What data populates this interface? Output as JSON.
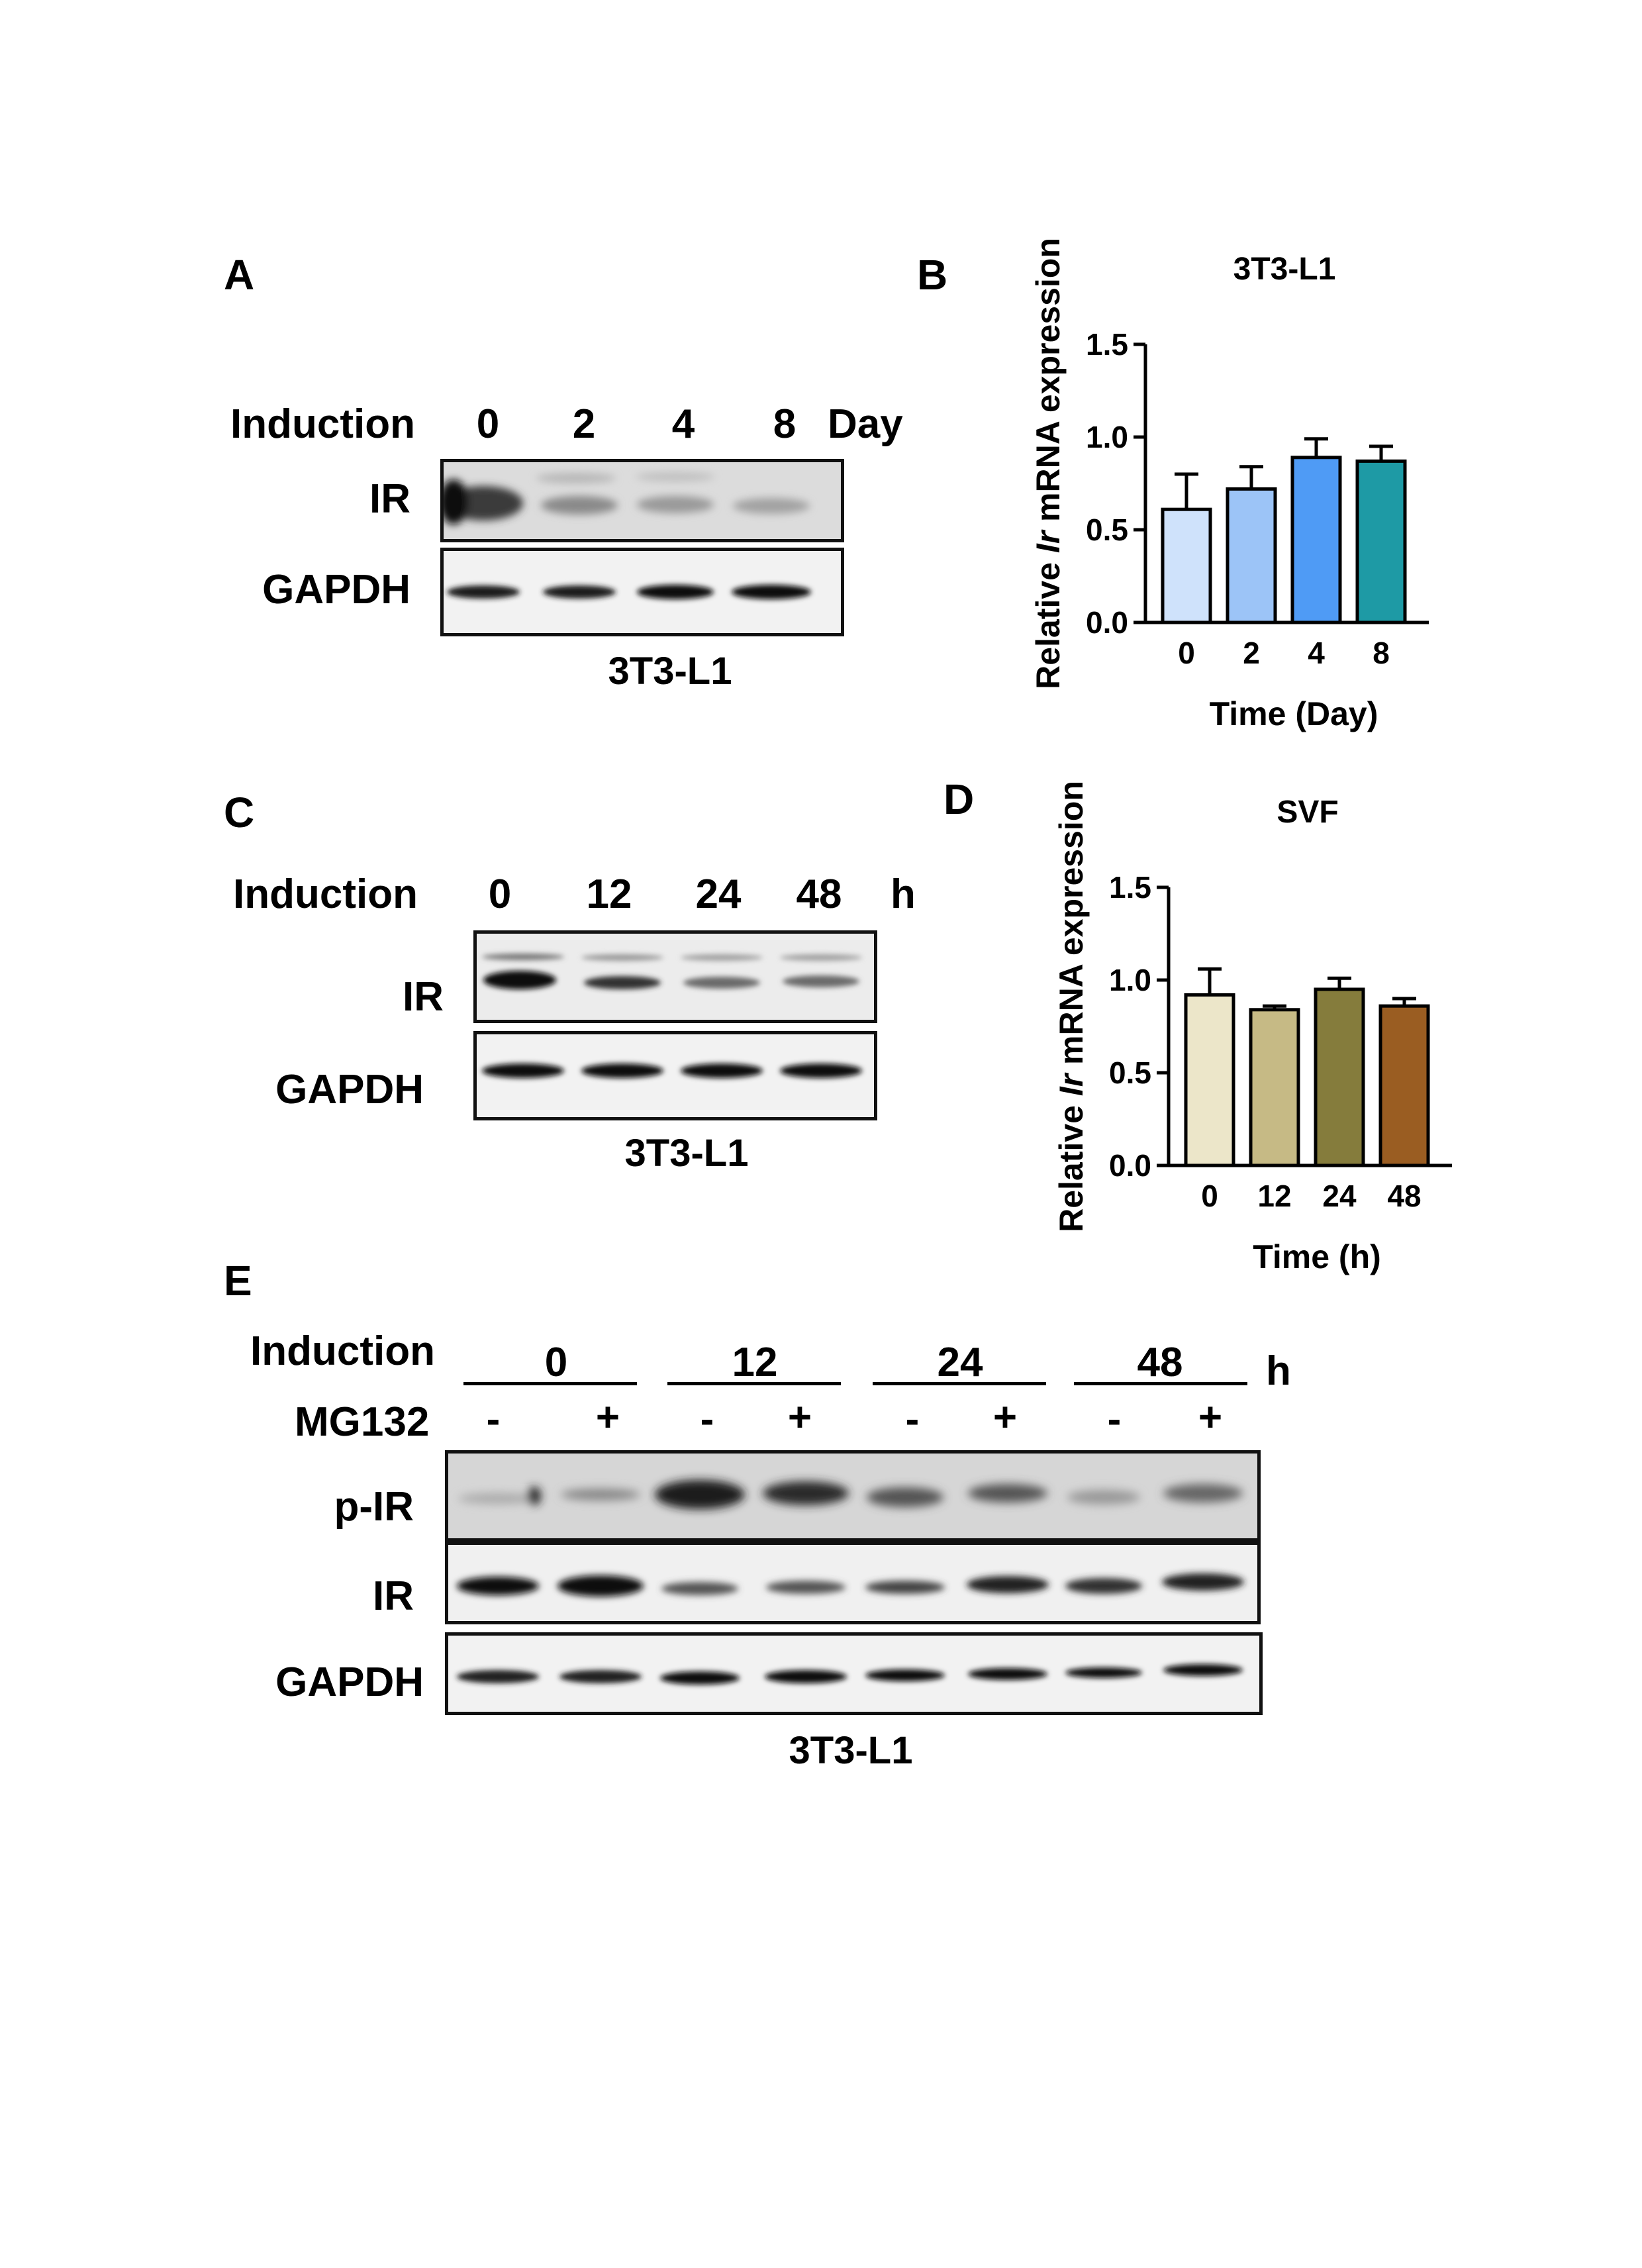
{
  "panels": {
    "A": {
      "label": "A",
      "induction_label": "Induction",
      "lanes": [
        "0",
        "2",
        "4",
        "8"
      ],
      "unit": "Day",
      "rows": [
        "IR",
        "GAPDH"
      ],
      "cell_line": "3T3-L1"
    },
    "C": {
      "label": "C",
      "induction_label": "Induction",
      "lanes": [
        "0",
        "12",
        "24",
        "48"
      ],
      "unit": "h",
      "rows": [
        "IR",
        "GAPDH"
      ],
      "cell_line": "3T3-L1"
    },
    "E": {
      "label": "E",
      "induction_label": "Induction",
      "groups": [
        "0",
        "12",
        "24",
        "48"
      ],
      "unit": "h",
      "treatment_label": "MG132",
      "treatment_signs": [
        "-",
        "+",
        "-",
        "+",
        "-",
        "+",
        "-",
        "+"
      ],
      "rows": [
        "p-IR",
        "IR",
        "GAPDH"
      ],
      "cell_line": "3T3-L1"
    },
    "B": {
      "label": "B"
    },
    "D": {
      "label": "D"
    }
  },
  "chart_data": [
    {
      "type": "bar",
      "title": "3T3-L1",
      "xlabel": "Time (Day)",
      "ylabel_prefix": "Relative ",
      "ylabel_italic": "Ir",
      "ylabel_suffix": " mRNA expression",
      "categories": [
        "0",
        "2",
        "4",
        "8"
      ],
      "values": [
        0.61,
        0.72,
        0.89,
        0.87
      ],
      "errors": [
        0.19,
        0.12,
        0.1,
        0.08
      ],
      "colors": [
        "#cfe2fb",
        "#9cc4f7",
        "#4f9bf5",
        "#1e9aa5"
      ],
      "ylim": [
        0,
        1.5
      ],
      "yticks": [
        "0.0",
        "0.5",
        "1.0",
        "1.5"
      ]
    },
    {
      "type": "bar",
      "title": "SVF",
      "xlabel": "Time (h)",
      "ylabel_prefix": "Relative ",
      "ylabel_italic": "Ir",
      "ylabel_suffix": " mRNA expression",
      "categories": [
        "0",
        "12",
        "24",
        "48"
      ],
      "values": [
        0.92,
        0.84,
        0.95,
        0.86
      ],
      "errors": [
        0.14,
        0.02,
        0.06,
        0.04
      ],
      "colors": [
        "#ece6c9",
        "#c6ba85",
        "#857c3c",
        "#9a5d22"
      ],
      "ylim": [
        0,
        1.5
      ],
      "yticks": [
        "0.0",
        "0.5",
        "1.0",
        "1.5"
      ]
    }
  ]
}
